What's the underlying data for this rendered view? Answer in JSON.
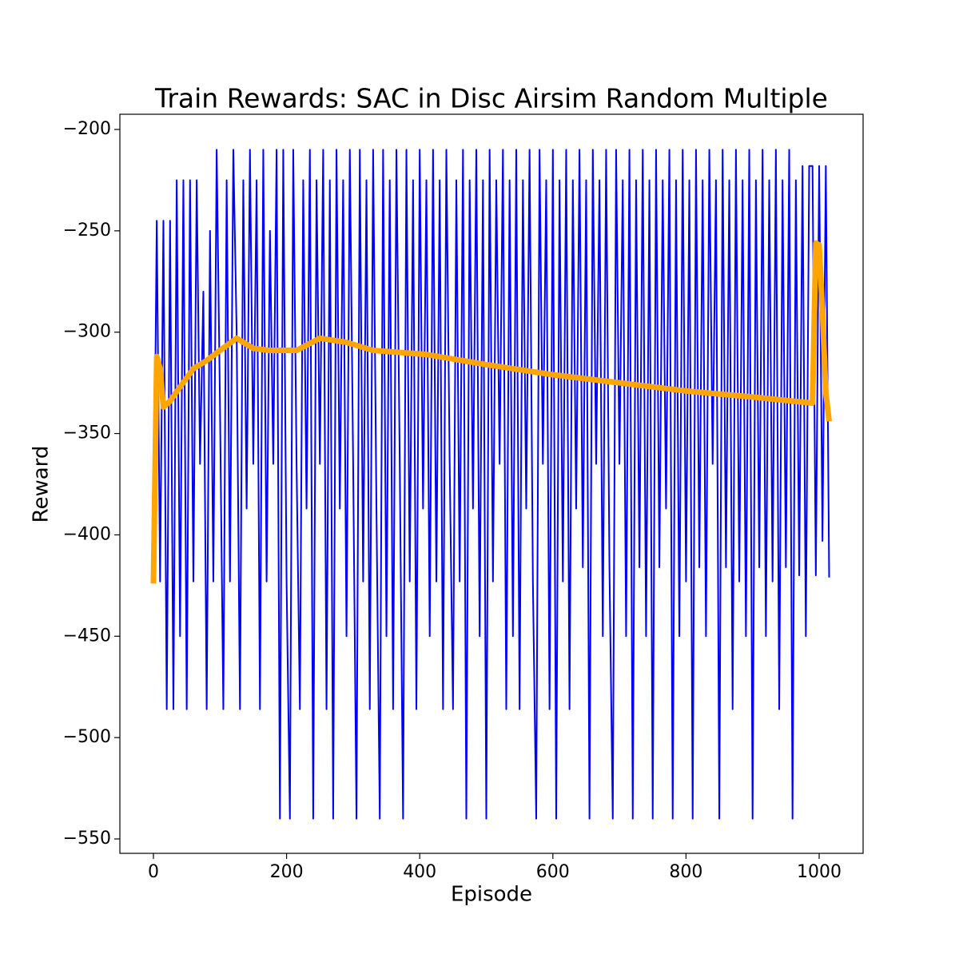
{
  "chart_data": {
    "type": "line",
    "title": "Train Rewards: SAC in Disc Airsim Random Multiple",
    "x_label": "Episode",
    "y_label": "Reward",
    "xlim": [
      -50.4,
      1066
    ],
    "ylim": [
      -557.1,
      -192.5
    ],
    "xticks": [
      0,
      200,
      400,
      600,
      800,
      1000
    ],
    "yticks": [
      {
        "value": -550,
        "label": "−550"
      },
      {
        "value": -500,
        "label": "−500"
      },
      {
        "value": -450,
        "label": "−450"
      },
      {
        "value": -400,
        "label": "−400"
      },
      {
        "value": -350,
        "label": "−350"
      },
      {
        "value": -300,
        "label": "−300"
      },
      {
        "value": -250,
        "label": "−250"
      },
      {
        "value": -200,
        "label": "−200"
      }
    ],
    "series": [
      {
        "color": "#0000ff",
        "width": 2,
        "x": [
          0,
          5,
          10,
          15,
          20,
          25,
          30,
          35,
          40,
          45,
          50,
          55,
          60,
          65,
          70,
          75,
          80,
          85,
          90,
          95,
          100,
          105,
          110,
          115,
          120,
          125,
          130,
          135,
          140,
          145,
          150,
          155,
          160,
          165,
          170,
          175,
          180,
          185,
          190,
          195,
          200,
          205,
          210,
          215,
          220,
          225,
          230,
          235,
          240,
          245,
          250,
          255,
          260,
          265,
          270,
          275,
          280,
          285,
          290,
          295,
          300,
          305,
          310,
          315,
          320,
          325,
          330,
          335,
          340,
          345,
          350,
          355,
          360,
          365,
          370,
          375,
          380,
          385,
          390,
          395,
          400,
          405,
          410,
          415,
          420,
          425,
          430,
          435,
          440,
          445,
          450,
          455,
          460,
          465,
          470,
          475,
          480,
          485,
          490,
          495,
          500,
          505,
          510,
          515,
          520,
          525,
          530,
          535,
          540,
          545,
          550,
          555,
          560,
          565,
          570,
          575,
          580,
          585,
          590,
          595,
          600,
          605,
          610,
          615,
          620,
          625,
          630,
          635,
          640,
          645,
          650,
          655,
          660,
          665,
          670,
          675,
          680,
          685,
          690,
          695,
          700,
          705,
          710,
          715,
          720,
          725,
          730,
          735,
          740,
          745,
          750,
          755,
          760,
          765,
          770,
          775,
          780,
          785,
          790,
          795,
          800,
          805,
          810,
          815,
          820,
          825,
          830,
          835,
          840,
          845,
          850,
          855,
          860,
          865,
          870,
          875,
          880,
          885,
          890,
          895,
          900,
          905,
          910,
          915,
          920,
          925,
          930,
          935,
          940,
          945,
          950,
          955,
          960,
          965,
          970,
          975,
          980,
          985,
          990,
          995,
          1000,
          1005,
          1010,
          1015
        ],
        "values": [
          -423,
          -245,
          -423,
          -245,
          -486,
          -245,
          -486,
          -225,
          -450,
          -225,
          -486,
          -225,
          -423,
          -225,
          -365,
          -280,
          -486,
          -250,
          -423,
          -210,
          -337,
          -486,
          -225,
          -423,
          -210,
          -300,
          -486,
          -225,
          -387,
          -210,
          -365,
          -225,
          -486,
          -210,
          -423,
          -250,
          -365,
          -210,
          -540,
          -210,
          -423,
          -540,
          -210,
          -365,
          -486,
          -225,
          -387,
          -210,
          -540,
          -225,
          -365,
          -210,
          -486,
          -225,
          -540,
          -210,
          -387,
          -225,
          -450,
          -210,
          -365,
          -540,
          -210,
          -423,
          -225,
          -486,
          -210,
          -387,
          -540,
          -210,
          -450,
          -225,
          -486,
          -210,
          -365,
          -540,
          -210,
          -423,
          -225,
          -486,
          -210,
          -387,
          -225,
          -450,
          -210,
          -423,
          -225,
          -486,
          -210,
          -365,
          -486,
          -225,
          -423,
          -210,
          -540,
          -225,
          -387,
          -210,
          -450,
          -225,
          -540,
          -210,
          -423,
          -225,
          -365,
          -210,
          -486,
          -225,
          -450,
          -210,
          -486,
          -225,
          -387,
          -210,
          -423,
          -540,
          -210,
          -365,
          -225,
          -486,
          -210,
          -540,
          -225,
          -423,
          -210,
          -486,
          -225,
          -387,
          -210,
          -416,
          -225,
          -540,
          -210,
          -365,
          -225,
          -450,
          -210,
          -416,
          -540,
          -210,
          -365,
          -225,
          -450,
          -210,
          -540,
          -225,
          -416,
          -210,
          -450,
          -225,
          -540,
          -210,
          -416,
          -225,
          -387,
          -210,
          -540,
          -225,
          -450,
          -210,
          -423,
          -225,
          -540,
          -210,
          -416,
          -225,
          -450,
          -210,
          -365,
          -225,
          -540,
          -210,
          -416,
          -225,
          -486,
          -210,
          -423,
          -225,
          -450,
          -210,
          -540,
          -225,
          -416,
          -210,
          -450,
          -225,
          -423,
          -210,
          -486,
          -225,
          -416,
          -210,
          -540,
          -225,
          -420,
          -218,
          -450,
          -218,
          -218,
          -420,
          -218,
          -403,
          -218,
          -421
        ]
      },
      {
        "color": "#ffa500",
        "width": 7,
        "x": [
          0,
          5,
          10,
          15,
          25,
          40,
          60,
          80,
          100,
          125,
          150,
          175,
          215,
          250,
          290,
          330,
          410,
          500,
          600,
          700,
          800,
          900,
          990,
          995,
          1000,
          1005,
          1010,
          1015
        ],
        "values": [
          -424,
          -312,
          -318,
          -337,
          -334,
          -327,
          -318,
          -314,
          -309,
          -303,
          -308,
          -309,
          -309,
          -303,
          -305,
          -309,
          -311,
          -316,
          -321,
          -325,
          -329,
          -332,
          -335,
          -256,
          -257,
          -290,
          -330,
          -344
        ]
      }
    ]
  }
}
